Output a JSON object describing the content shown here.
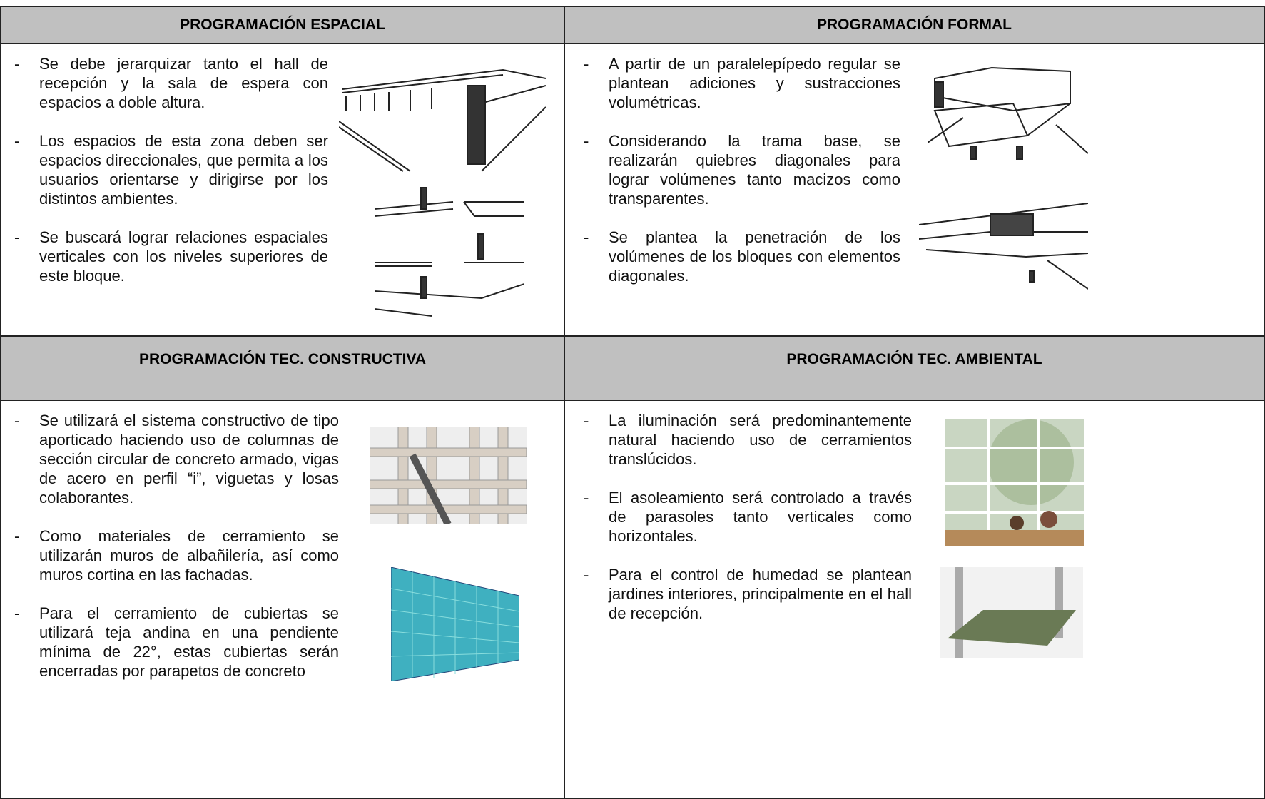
{
  "sections": [
    {
      "title": "PROGRAMACIÓN ESPACIAL",
      "items": [
        "Se debe jerarquizar tanto el hall de recepción y la sala de espera con espacios a doble altura.",
        "Los espacios de esta zona deben ser espacios direccionales, que permita a los usuarios orientarse y dirigirse por los distintos ambientes.",
        "Se buscará lograr relaciones espaciales verticales con los niveles superiores de este bloque."
      ]
    },
    {
      "title": "PROGRAMACIÓN FORMAL",
      "items": [
        "A partir de un paralelepípedo regular se plantean adiciones y sustracciones volumétricas.",
        "Considerando la trama base, se realizarán quiebres diagonales para lograr volúmenes tanto macizos como transparentes.",
        "Se plantea la penetración de los volúmenes de los bloques con elementos diagonales."
      ]
    },
    {
      "title": "PROGRAMACIÓN TEC. CONSTRUCTIVA",
      "items": [
        "Se utilizará el sistema constructivo de tipo aporticado haciendo uso de columnas de sección circular de concreto armado, vigas de acero en perfil “i”, viguetas y losas colaborantes.",
        "Como materiales de cerramiento se utilizarán muros de albañilería, así como muros cortina en las fachadas.",
        "Para el cerramiento de cubiertas se utilizará teja andina en una pendiente mínima de 22°, estas cubiertas serán encerradas por parapetos de concreto"
      ]
    },
    {
      "title": "PROGRAMACIÓN TEC. AMBIENTAL",
      "items": [
        "La iluminación será predominantemente natural haciendo uso de cerramientos translúcidos.",
        "El asoleamiento será controlado a través de parasoles tanto verticales como horizontales.",
        "Para el control de humedad se plantean jardines interiores, principalmente en el hall de recepción."
      ]
    }
  ]
}
